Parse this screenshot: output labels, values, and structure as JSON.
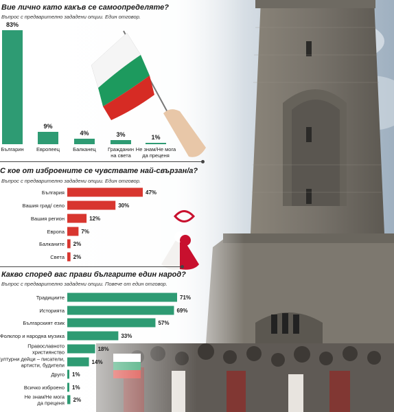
{
  "colors": {
    "green": "#2e9b73",
    "red": "#d8362f"
  },
  "photo": {
    "flag_colors": [
      "#ffffff",
      "#1d9a5e",
      "#d62b24"
    ],
    "martenitsa_colors": [
      "#ffffff",
      "#c8102e"
    ]
  },
  "chart_data": [
    {
      "type": "bar",
      "orientation": "vertical",
      "title": "Вие лично като какъв се самоопределяте?",
      "subtitle": "Въпрос с предварително зададени опции. Един отговор.",
      "categories": [
        "Българин",
        "Европеец",
        "Балканец",
        "Гражданин\nна света",
        "Не знам/Не мога\nда преценя"
      ],
      "values": [
        83,
        9,
        4,
        3,
        1
      ],
      "value_labels": [
        "83%",
        "9%",
        "4%",
        "3%",
        "1%"
      ],
      "color": "#2e9b73"
    },
    {
      "type": "bar",
      "orientation": "horizontal",
      "title": "С кое от изброените се чувствате най-свързан/а?",
      "subtitle": "Въпрос с предварително зададени опции. Един отговор.",
      "categories": [
        "България",
        "Вашия град/ село",
        "Вашия регион",
        "Европа",
        "Балканите",
        "Света"
      ],
      "values": [
        47,
        30,
        12,
        7,
        2,
        2
      ],
      "value_labels": [
        "47%",
        "30%",
        "12%",
        "7%",
        "2%",
        "2%"
      ],
      "color": "#d8362f"
    },
    {
      "type": "bar",
      "orientation": "horizontal",
      "title": "Какво според вас прави българите един народ?",
      "subtitle": "Въпрос с предварително зададени опции. Повече от един отговор.",
      "categories": [
        "Традициите",
        "Историята",
        "Българският език",
        "Фолклор и народна музика",
        "Православното\nхристиянство",
        "Културни дейци – писатели,\nартисти, будители",
        "Друго",
        "Всичко изброено",
        "Не знам/Не мога\nда преценя"
      ],
      "values": [
        71,
        69,
        57,
        33,
        18,
        14,
        1,
        1,
        2
      ],
      "value_labels": [
        "71%",
        "69%",
        "57%",
        "33%",
        "18%",
        "14%",
        "1%",
        "1%",
        "2%"
      ],
      "color": "#2e9b73"
    }
  ]
}
